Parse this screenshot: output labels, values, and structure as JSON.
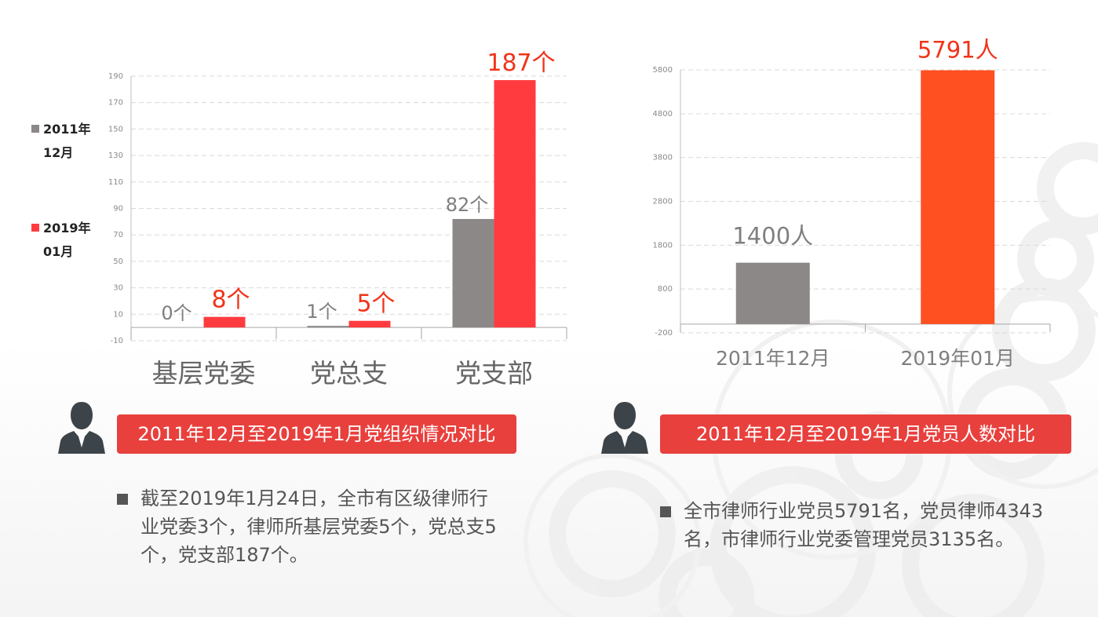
{
  "left_chart": {
    "chart_data": {
      "type": "bar",
      "categories": [
        "基层党委",
        "党总支",
        "党支部"
      ],
      "series": [
        {
          "name": "2011年12月",
          "values": [
            0,
            1,
            82
          ],
          "labels": [
            "0个",
            "1个",
            "82个"
          ]
        },
        {
          "name": "2019年01月",
          "values": [
            8,
            5,
            187
          ],
          "labels": [
            "8个",
            "5个",
            "187个"
          ]
        }
      ],
      "ylim": [
        -10,
        190
      ],
      "yticks": [
        -10,
        10,
        30,
        50,
        70,
        90,
        110,
        130,
        150,
        170,
        190
      ],
      "grid": true,
      "legend": "left"
    },
    "legend": [
      {
        "line1": "2011年",
        "line2": "12月",
        "color": "#8c8888"
      },
      {
        "line1": "2019年",
        "line2": "01月",
        "color": "#ff3b3f"
      }
    ],
    "title": "2011年12月至2019年1月党组织情况对比",
    "bullet": "截至2019年1月24日，全市有区级律师行业党委3个，律师所基层党委5个，党总支5个，党支部187个。"
  },
  "right_chart": {
    "chart_data": {
      "type": "bar",
      "categories": [
        "2011年12月",
        "2019年01月"
      ],
      "values": [
        1400,
        5791
      ],
      "labels": [
        "1400人",
        "5791人"
      ],
      "ylim": [
        -200,
        5800
      ],
      "yticks": [
        -200,
        800,
        1800,
        2800,
        3800,
        4800,
        5800
      ],
      "grid": true
    },
    "title": "2011年12月至2019年1月党员人数对比",
    "bullet": "全市律师行业党员5791名，党员律师4343名，市律师行业党委管理党员3135名。"
  },
  "colors": {
    "gray_bar": "#8c8888",
    "red_bar": "#ff3b3f",
    "orange_bar": "#ff5022",
    "accent_red": "#e8403d",
    "label_red": "#f0341a",
    "label_gray": "#7f7f7f"
  },
  "icons": {
    "person": "person-silhouette-icon",
    "bullet": "square-bullet-icon"
  }
}
